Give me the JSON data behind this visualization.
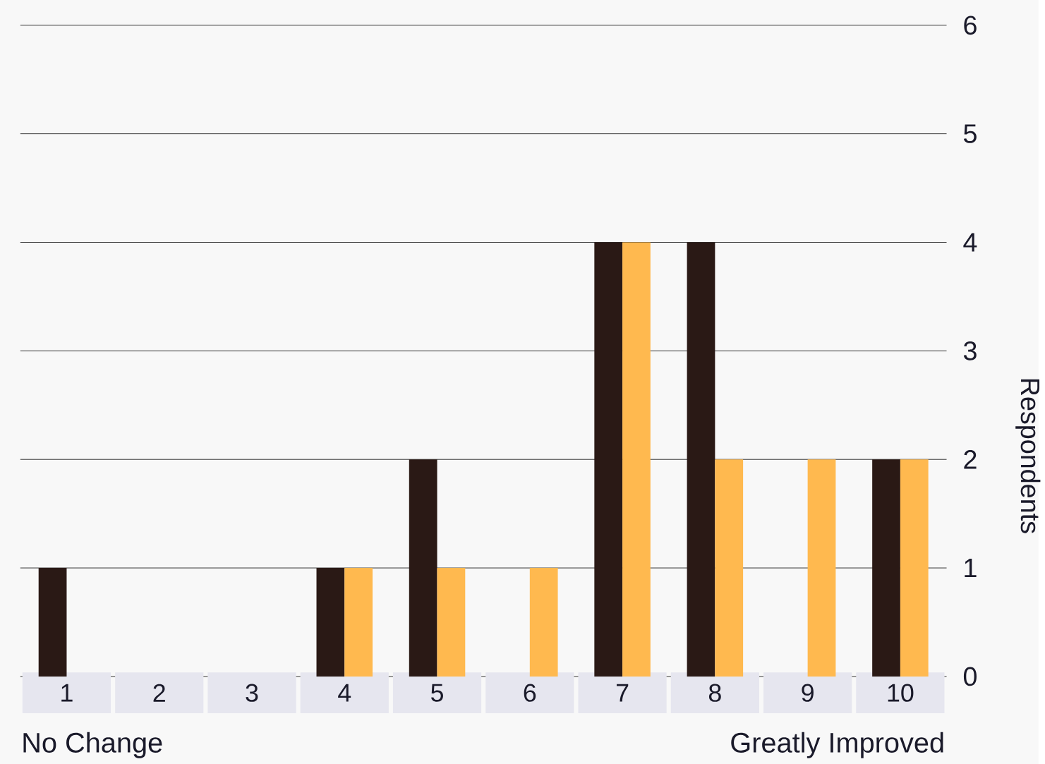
{
  "chart_data": {
    "type": "bar",
    "ylabel": "Respondents",
    "categories": [
      "1",
      "2",
      "3",
      "4",
      "5",
      "6",
      "7",
      "8",
      "9",
      "10"
    ],
    "series": [
      {
        "color": "#2a1915",
        "values": [
          1,
          0,
          0,
          1,
          2,
          0,
          4,
          4,
          0,
          2
        ]
      },
      {
        "color": "#ffb94f",
        "values": [
          0,
          0,
          0,
          1,
          1,
          1,
          4,
          2,
          2,
          2
        ]
      }
    ],
    "ylim": [
      0,
      6
    ],
    "yticks": [
      0,
      1,
      2,
      3,
      4,
      5,
      6
    ],
    "grid": "y",
    "annotations": [
      "No Change",
      "Greatly Improved"
    ]
  }
}
